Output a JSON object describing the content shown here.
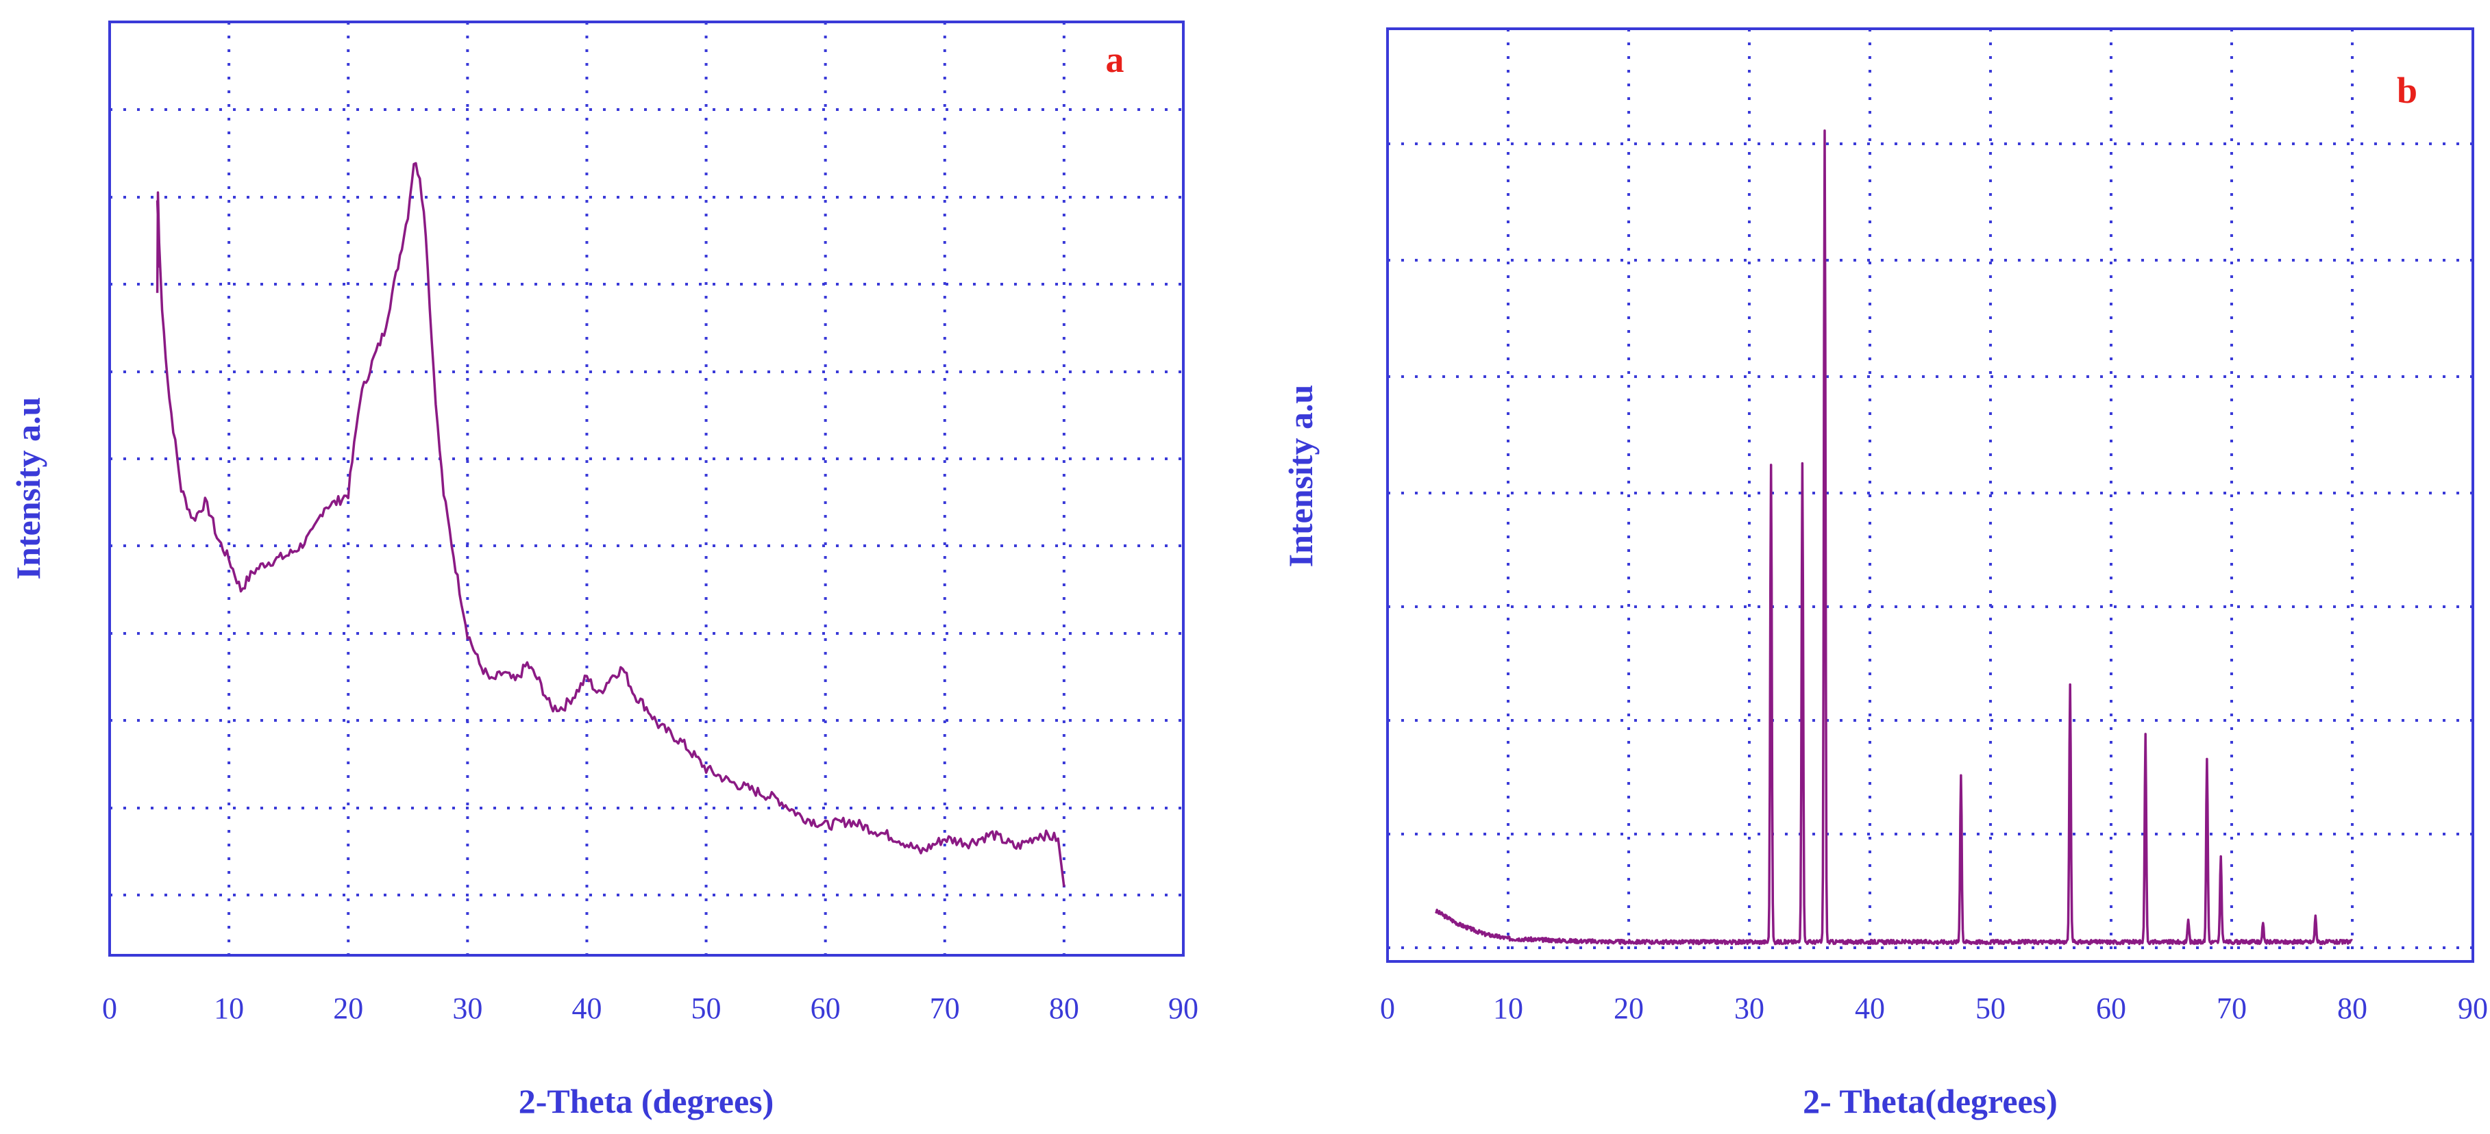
{
  "colors": {
    "axis": "#3a3ad8",
    "trace": "#8b1a84",
    "panel_letter": "#e8201a",
    "background": "#ffffff"
  },
  "chart_data": [
    {
      "type": "line",
      "panel_label": "a",
      "xlabel": "2-Theta (degrees)",
      "ylabel": "Intensity a.u",
      "xlim": [
        0,
        90
      ],
      "xticks": [
        0,
        10,
        20,
        30,
        40,
        50,
        60,
        70,
        80,
        90
      ],
      "ylim": [
        0,
        10
      ],
      "y_tick_labels_shown": false,
      "grid": true,
      "series": [
        {
          "x": [
            4.0,
            4.4,
            5,
            6,
            7,
            8,
            8.5,
            9,
            10,
            11,
            12,
            13,
            14,
            15,
            16,
            17,
            18,
            19,
            20,
            21,
            22,
            23,
            24,
            25,
            25.5,
            26,
            26.5,
            27,
            27.5,
            28,
            29,
            30,
            31,
            32,
            33,
            34,
            35,
            36,
            37,
            38,
            39,
            40,
            41,
            42,
            43,
            44,
            45,
            46,
            48,
            50,
            52,
            54,
            56,
            58,
            60,
            62,
            64,
            66,
            68,
            70,
            72,
            74,
            76,
            78,
            79.5,
            80
          ],
          "y": [
            8.95,
            7.7,
            6.7,
            5.65,
            5.3,
            5.5,
            5.35,
            5.1,
            4.85,
            4.5,
            4.7,
            4.8,
            4.85,
            4.9,
            5.0,
            5.15,
            5.45,
            5.5,
            5.6,
            6.7,
            7.1,
            7.45,
            8.1,
            8.8,
            9.4,
            9.25,
            8.6,
            7.35,
            6.35,
            5.6,
            4.75,
            4.0,
            3.65,
            3.45,
            3.55,
            3.45,
            3.65,
            3.45,
            3.15,
            3.15,
            3.3,
            3.5,
            3.3,
            3.5,
            3.6,
            3.3,
            3.15,
            2.95,
            2.75,
            2.45,
            2.3,
            2.2,
            2.1,
            1.9,
            1.8,
            1.85,
            1.75,
            1.65,
            1.5,
            1.65,
            1.6,
            1.7,
            1.55,
            1.7,
            1.65,
            1.1
          ]
        }
      ]
    },
    {
      "type": "line",
      "panel_label": "b",
      "xlabel": "2- Theta(degrees)",
      "ylabel": "Intensity a.u",
      "xlim": [
        0,
        90
      ],
      "xticks": [
        0,
        10,
        20,
        30,
        40,
        50,
        60,
        70,
        80,
        90
      ],
      "ylim": [
        0,
        7.5
      ],
      "y_tick_labels_shown": false,
      "grid": true,
      "background": [
        [
          4,
          0.32
        ],
        [
          6,
          0.2
        ],
        [
          8,
          0.12
        ],
        [
          10,
          0.08
        ],
        [
          15,
          0.06
        ],
        [
          20,
          0.05
        ],
        [
          25,
          0.05
        ],
        [
          30,
          0.05
        ],
        [
          80,
          0.05
        ]
      ],
      "peaks": [
        {
          "x": 31.8,
          "y": 4.15
        },
        {
          "x": 34.4,
          "y": 4.15
        },
        {
          "x": 36.25,
          "y": 7.05
        },
        {
          "x": 47.55,
          "y": 1.45
        },
        {
          "x": 56.6,
          "y": 2.25
        },
        {
          "x": 62.85,
          "y": 1.8
        },
        {
          "x": 66.4,
          "y": 0.2
        },
        {
          "x": 67.95,
          "y": 1.6
        },
        {
          "x": 69.1,
          "y": 0.75
        },
        {
          "x": 72.6,
          "y": 0.15
        },
        {
          "x": 76.95,
          "y": 0.22
        }
      ]
    }
  ]
}
